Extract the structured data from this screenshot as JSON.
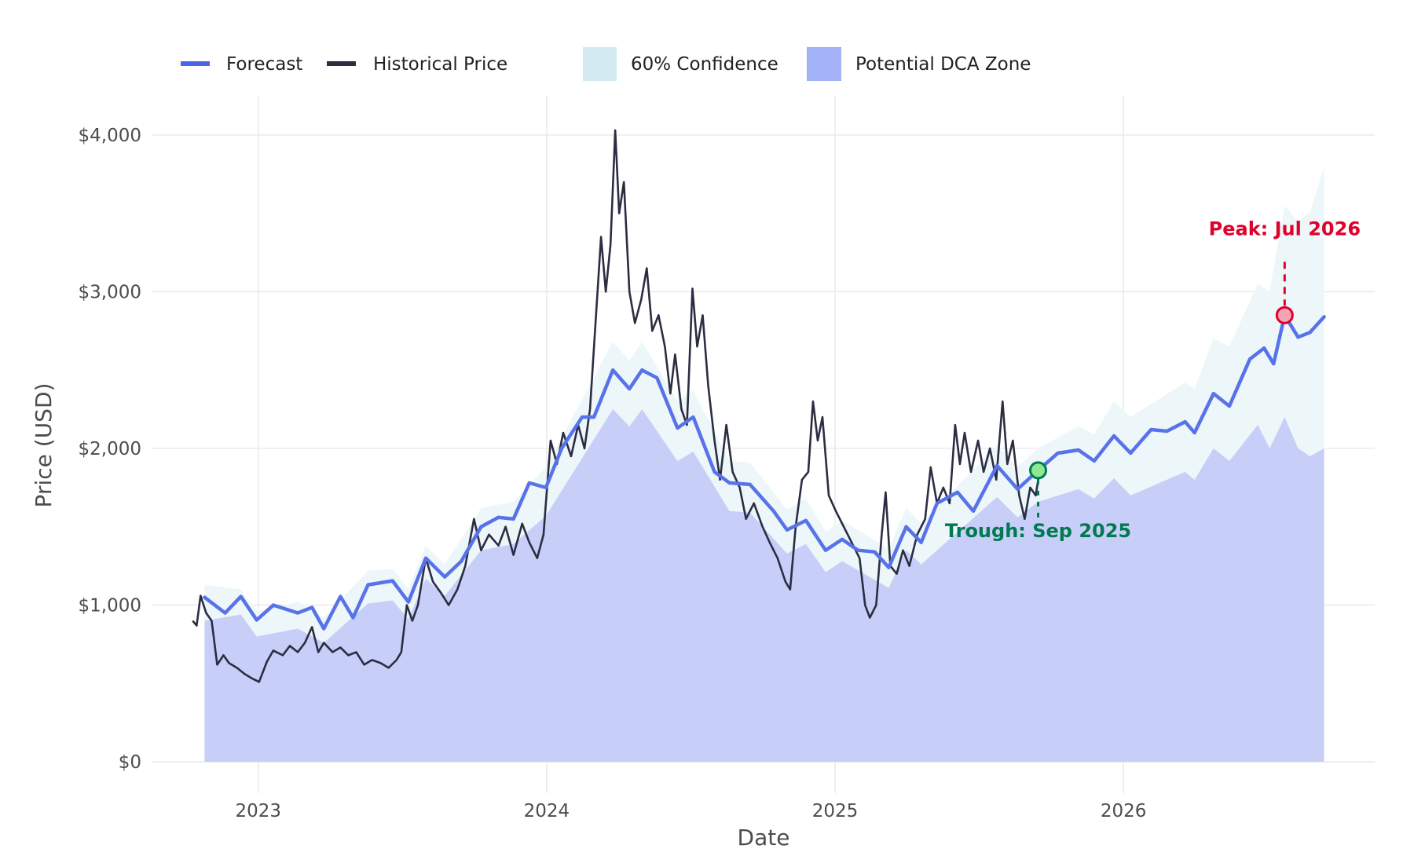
{
  "chart_data": {
    "type": "line",
    "title": "",
    "xlabel": "Date",
    "ylabel": "Price (USD)",
    "xlim": [
      "2022-08-20",
      "2026-11-15"
    ],
    "ylim": [
      -200,
      4250
    ],
    "x_ticks": [
      "2023",
      "2024",
      "2025",
      "2026"
    ],
    "y_ticks": [
      {
        "value": 0,
        "label": "$0"
      },
      {
        "value": 1000,
        "label": "$1,000"
      },
      {
        "value": 2000,
        "label": "$2,000"
      },
      {
        "value": 3000,
        "label": "$3,000"
      },
      {
        "value": 4000,
        "label": "$4,000"
      }
    ],
    "grid": true,
    "legend_placement": "top-left",
    "legend": [
      {
        "label": "Forecast",
        "kind": "line",
        "color": "#4c63e8"
      },
      {
        "label": "Historical Price",
        "kind": "line",
        "color": "#2b2d42"
      },
      {
        "label": "60% Confidence",
        "kind": "area",
        "color": "#d4eaf2"
      },
      {
        "label": "Potential DCA Zone",
        "kind": "area",
        "color": "#a3b1f7"
      }
    ],
    "colors": {
      "forecast": "#5873ea",
      "historical": "#2b2d42",
      "confidence_fill": "#edf6f9",
      "dca_fill": "#c7cef8",
      "peak": "#e0002a",
      "peak_marker_fill": "#f4a5b5",
      "trough": "#007a50",
      "trough_marker_fill": "#8fe88f"
    },
    "series": [
      {
        "name": "Historical Price",
        "points": [
          [
            "2022-10-10",
            900
          ],
          [
            "2022-10-15",
            870
          ],
          [
            "2022-10-20",
            1060
          ],
          [
            "2022-10-27",
            950
          ],
          [
            "2022-11-03",
            900
          ],
          [
            "2022-11-10",
            620
          ],
          [
            "2022-11-18",
            680
          ],
          [
            "2022-11-25",
            630
          ],
          [
            "2022-12-05",
            600
          ],
          [
            "2022-12-15",
            560
          ],
          [
            "2022-12-25",
            530
          ],
          [
            "2023-01-02",
            510
          ],
          [
            "2023-01-12",
            640
          ],
          [
            "2023-01-20",
            710
          ],
          [
            "2023-02-01",
            680
          ],
          [
            "2023-02-10",
            740
          ],
          [
            "2023-02-20",
            700
          ],
          [
            "2023-03-01",
            760
          ],
          [
            "2023-03-10",
            860
          ],
          [
            "2023-03-18",
            700
          ],
          [
            "2023-03-25",
            760
          ],
          [
            "2023-04-05",
            700
          ],
          [
            "2023-04-15",
            730
          ],
          [
            "2023-04-25",
            680
          ],
          [
            "2023-05-05",
            700
          ],
          [
            "2023-05-15",
            620
          ],
          [
            "2023-05-25",
            650
          ],
          [
            "2023-06-05",
            630
          ],
          [
            "2023-06-15",
            600
          ],
          [
            "2023-06-25",
            650
          ],
          [
            "2023-07-01",
            700
          ],
          [
            "2023-07-08",
            1000
          ],
          [
            "2023-07-15",
            900
          ],
          [
            "2023-07-22",
            1000
          ],
          [
            "2023-08-01",
            1300
          ],
          [
            "2023-08-10",
            1150
          ],
          [
            "2023-08-20",
            1080
          ],
          [
            "2023-08-30",
            1000
          ],
          [
            "2023-09-10",
            1100
          ],
          [
            "2023-09-20",
            1250
          ],
          [
            "2023-10-01",
            1550
          ],
          [
            "2023-10-10",
            1350
          ],
          [
            "2023-10-20",
            1450
          ],
          [
            "2023-11-01",
            1380
          ],
          [
            "2023-11-10",
            1500
          ],
          [
            "2023-11-20",
            1320
          ],
          [
            "2023-12-01",
            1520
          ],
          [
            "2023-12-10",
            1400
          ],
          [
            "2023-12-20",
            1300
          ],
          [
            "2023-12-28",
            1450
          ],
          [
            "2024-01-06",
            2050
          ],
          [
            "2024-01-14",
            1900
          ],
          [
            "2024-01-22",
            2100
          ],
          [
            "2024-02-01",
            1950
          ],
          [
            "2024-02-10",
            2150
          ],
          [
            "2024-02-18",
            2000
          ],
          [
            "2024-02-25",
            2250
          ],
          [
            "2024-03-03",
            2800
          ],
          [
            "2024-03-10",
            3350
          ],
          [
            "2024-03-16",
            3000
          ],
          [
            "2024-03-22",
            3300
          ],
          [
            "2024-03-28",
            4030
          ],
          [
            "2024-04-02",
            3500
          ],
          [
            "2024-04-08",
            3700
          ],
          [
            "2024-04-15",
            3000
          ],
          [
            "2024-04-22",
            2800
          ],
          [
            "2024-04-30",
            2950
          ],
          [
            "2024-05-07",
            3150
          ],
          [
            "2024-05-14",
            2750
          ],
          [
            "2024-05-22",
            2850
          ],
          [
            "2024-05-30",
            2650
          ],
          [
            "2024-06-06",
            2350
          ],
          [
            "2024-06-12",
            2600
          ],
          [
            "2024-06-20",
            2250
          ],
          [
            "2024-06-27",
            2150
          ],
          [
            "2024-07-04",
            3020
          ],
          [
            "2024-07-10",
            2650
          ],
          [
            "2024-07-17",
            2850
          ],
          [
            "2024-07-24",
            2400
          ],
          [
            "2024-08-01",
            2050
          ],
          [
            "2024-08-08",
            1800
          ],
          [
            "2024-08-16",
            2150
          ],
          [
            "2024-08-24",
            1850
          ],
          [
            "2024-09-02",
            1750
          ],
          [
            "2024-09-10",
            1550
          ],
          [
            "2024-09-20",
            1650
          ],
          [
            "2024-10-01",
            1500
          ],
          [
            "2024-10-10",
            1400
          ],
          [
            "2024-10-20",
            1300
          ],
          [
            "2024-10-30",
            1150
          ],
          [
            "2024-11-05",
            1100
          ],
          [
            "2024-11-12",
            1500
          ],
          [
            "2024-11-20",
            1800
          ],
          [
            "2024-11-28",
            1850
          ],
          [
            "2024-12-04",
            2300
          ],
          [
            "2024-12-10",
            2050
          ],
          [
            "2024-12-16",
            2200
          ],
          [
            "2024-12-24",
            1700
          ],
          [
            "2025-01-02",
            1600
          ],
          [
            "2025-01-12",
            1500
          ],
          [
            "2025-01-22",
            1400
          ],
          [
            "2025-02-01",
            1300
          ],
          [
            "2025-02-08",
            1000
          ],
          [
            "2025-02-14",
            920
          ],
          [
            "2025-02-22",
            1000
          ],
          [
            "2025-03-01",
            1450
          ],
          [
            "2025-03-06",
            1720
          ],
          [
            "2025-03-12",
            1250
          ],
          [
            "2025-03-20",
            1200
          ],
          [
            "2025-03-28",
            1350
          ],
          [
            "2025-04-05",
            1250
          ],
          [
            "2025-04-15",
            1450
          ],
          [
            "2025-04-25",
            1550
          ],
          [
            "2025-05-02",
            1880
          ],
          [
            "2025-05-10",
            1650
          ],
          [
            "2025-05-18",
            1750
          ],
          [
            "2025-05-26",
            1650
          ],
          [
            "2025-06-02",
            2150
          ],
          [
            "2025-06-08",
            1900
          ],
          [
            "2025-06-14",
            2100
          ],
          [
            "2025-06-22",
            1850
          ],
          [
            "2025-07-01",
            2050
          ],
          [
            "2025-07-08",
            1850
          ],
          [
            "2025-07-16",
            2000
          ],
          [
            "2025-07-24",
            1800
          ],
          [
            "2025-08-01",
            2300
          ],
          [
            "2025-08-07",
            1900
          ],
          [
            "2025-08-14",
            2050
          ],
          [
            "2025-08-22",
            1700
          ],
          [
            "2025-08-29",
            1550
          ],
          [
            "2025-09-05",
            1750
          ],
          [
            "2025-09-12",
            1700
          ],
          [
            "2025-09-16",
            1830
          ]
        ]
      },
      {
        "name": "Forecast",
        "points": [
          [
            "2022-10-25",
            1050
          ],
          [
            "2022-11-20",
            950
          ],
          [
            "2022-12-10",
            1055
          ],
          [
            "2022-12-30",
            905
          ],
          [
            "2023-01-20",
            1000
          ],
          [
            "2023-02-20",
            950
          ],
          [
            "2023-03-10",
            985
          ],
          [
            "2023-03-25",
            850
          ],
          [
            "2023-04-15",
            1055
          ],
          [
            "2023-05-01",
            920
          ],
          [
            "2023-05-20",
            1130
          ],
          [
            "2023-06-20",
            1155
          ],
          [
            "2023-07-10",
            1020
          ],
          [
            "2023-08-01",
            1300
          ],
          [
            "2023-08-25",
            1180
          ],
          [
            "2023-09-15",
            1280
          ],
          [
            "2023-10-10",
            1500
          ],
          [
            "2023-11-01",
            1560
          ],
          [
            "2023-11-20",
            1550
          ],
          [
            "2023-12-10",
            1780
          ],
          [
            "2023-12-31",
            1750
          ],
          [
            "2024-01-20",
            2000
          ],
          [
            "2024-02-15",
            2200
          ],
          [
            "2024-03-01",
            2200
          ],
          [
            "2024-03-25",
            2500
          ],
          [
            "2024-04-15",
            2380
          ],
          [
            "2024-05-01",
            2500
          ],
          [
            "2024-05-20",
            2450
          ],
          [
            "2024-06-15",
            2130
          ],
          [
            "2024-07-05",
            2200
          ],
          [
            "2024-08-01",
            1850
          ],
          [
            "2024-08-20",
            1780
          ],
          [
            "2024-09-15",
            1770
          ],
          [
            "2024-10-15",
            1600
          ],
          [
            "2024-11-01",
            1480
          ],
          [
            "2024-11-25",
            1540
          ],
          [
            "2024-12-20",
            1350
          ],
          [
            "2025-01-10",
            1420
          ],
          [
            "2025-01-30",
            1350
          ],
          [
            "2025-02-20",
            1340
          ],
          [
            "2025-03-10",
            1240
          ],
          [
            "2025-04-01",
            1500
          ],
          [
            "2025-04-20",
            1400
          ],
          [
            "2025-05-10",
            1650
          ],
          [
            "2025-06-05",
            1720
          ],
          [
            "2025-06-25",
            1600
          ],
          [
            "2025-07-25",
            1890
          ],
          [
            "2025-08-20",
            1740
          ],
          [
            "2025-09-15",
            1860
          ],
          [
            "2025-10-10",
            1970
          ],
          [
            "2025-11-05",
            1990
          ],
          [
            "2025-11-25",
            1920
          ],
          [
            "2025-12-20",
            2080
          ],
          [
            "2026-01-10",
            1970
          ],
          [
            "2026-02-05",
            2120
          ],
          [
            "2026-02-25",
            2110
          ],
          [
            "2026-03-20",
            2170
          ],
          [
            "2026-04-01",
            2100
          ],
          [
            "2026-04-25",
            2350
          ],
          [
            "2026-05-15",
            2270
          ],
          [
            "2026-06-10",
            2570
          ],
          [
            "2026-06-28",
            2640
          ],
          [
            "2026-07-10",
            2540
          ],
          [
            "2026-07-24",
            2850
          ],
          [
            "2026-08-10",
            2710
          ],
          [
            "2026-08-25",
            2740
          ],
          [
            "2026-09-12",
            2840
          ]
        ]
      }
    ],
    "confidence_band": {
      "name": "60% Confidence",
      "points": [
        [
          "2022-10-25",
          900,
          1130
        ],
        [
          "2022-12-10",
          940,
          1100
        ],
        [
          "2022-12-30",
          800,
          960
        ],
        [
          "2023-02-20",
          850,
          1020
        ],
        [
          "2023-03-25",
          760,
          920
        ],
        [
          "2023-05-20",
          1010,
          1220
        ],
        [
          "2023-06-20",
          1030,
          1230
        ],
        [
          "2023-07-10",
          910,
          1100
        ],
        [
          "2023-08-01",
          1170,
          1380
        ],
        [
          "2023-08-25",
          1060,
          1260
        ],
        [
          "2023-10-10",
          1350,
          1620
        ],
        [
          "2023-11-20",
          1390,
          1660
        ],
        [
          "2023-12-31",
          1570,
          1880
        ],
        [
          "2024-03-25",
          2250,
          2680
        ],
        [
          "2024-04-15",
          2140,
          2560
        ],
        [
          "2024-05-01",
          2250,
          2680
        ],
        [
          "2024-06-15",
          1920,
          2300
        ],
        [
          "2024-07-05",
          1980,
          2370
        ],
        [
          "2024-08-20",
          1600,
          1920
        ],
        [
          "2024-09-15",
          1590,
          1910
        ],
        [
          "2024-11-01",
          1330,
          1610
        ],
        [
          "2024-11-25",
          1390,
          1680
        ],
        [
          "2024-12-20",
          1210,
          1470
        ],
        [
          "2025-01-10",
          1280,
          1540
        ],
        [
          "2025-03-10",
          1110,
          1360
        ],
        [
          "2025-04-01",
          1350,
          1620
        ],
        [
          "2025-04-20",
          1260,
          1520
        ],
        [
          "2025-07-25",
          1690,
          2020
        ],
        [
          "2025-08-20",
          1560,
          1880
        ],
        [
          "2025-09-15",
          1660,
          2000
        ],
        [
          "2025-11-05",
          1740,
          2140
        ],
        [
          "2025-11-25",
          1680,
          2090
        ],
        [
          "2025-12-20",
          1810,
          2300
        ],
        [
          "2026-01-10",
          1700,
          2200
        ],
        [
          "2026-03-20",
          1850,
          2420
        ],
        [
          "2026-04-01",
          1800,
          2380
        ],
        [
          "2026-04-25",
          2000,
          2700
        ],
        [
          "2026-05-15",
          1920,
          2650
        ],
        [
          "2026-06-20",
          2150,
          3050
        ],
        [
          "2026-07-05",
          2000,
          3000
        ],
        [
          "2026-07-24",
          2200,
          3550
        ],
        [
          "2026-08-10",
          2000,
          3450
        ],
        [
          "2026-08-25",
          1950,
          3500
        ],
        [
          "2026-09-12",
          2000,
          3800
        ]
      ]
    },
    "dca_zone": {
      "name": "Potential DCA Zone",
      "from": 0,
      "to": "confidence lower bound"
    },
    "annotations": [
      {
        "label": "Peak: Jul 2026",
        "date": "2026-07-24",
        "value": 2850,
        "type": "peak"
      },
      {
        "label": "Trough: Sep 2025",
        "date": "2025-09-15",
        "value": 1860,
        "type": "trough"
      }
    ]
  }
}
